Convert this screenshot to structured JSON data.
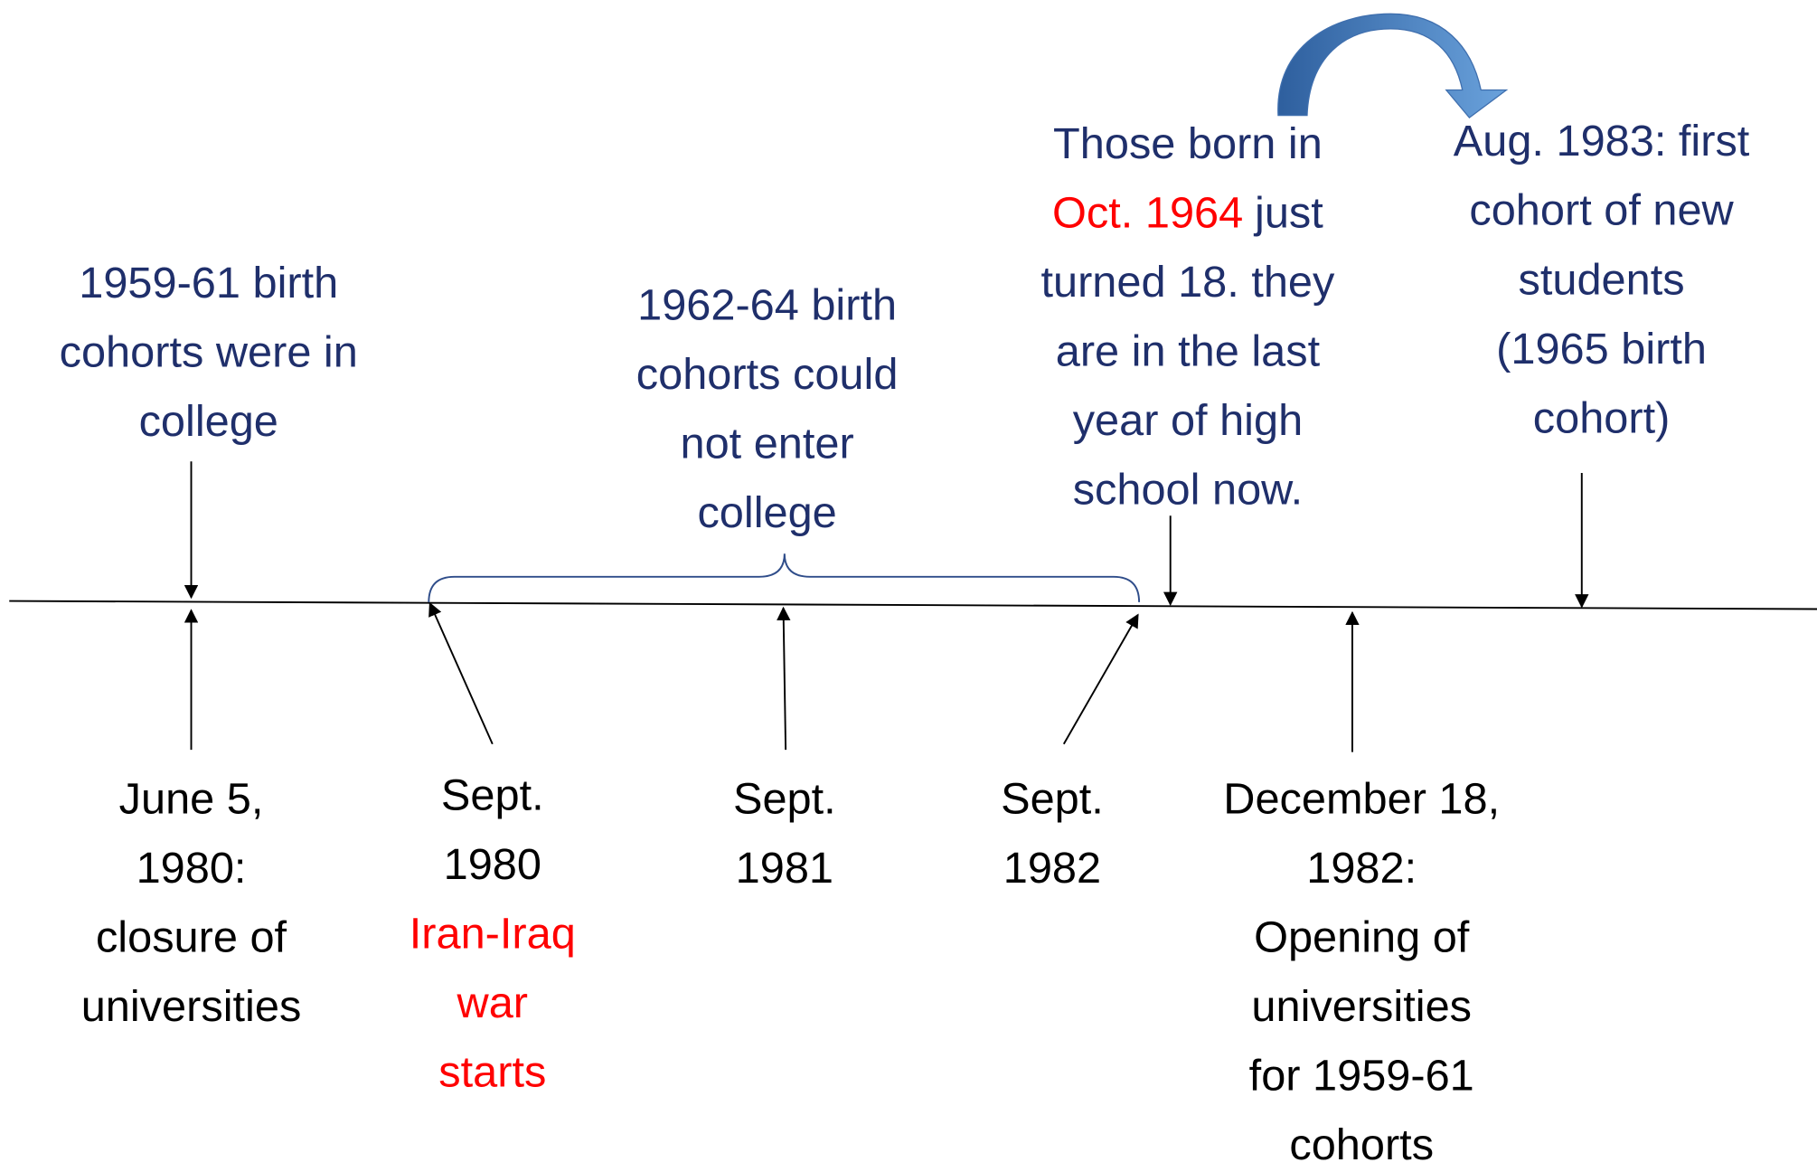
{
  "above": [
    {
      "lines": [
        "1959-61 birth",
        "cohorts were in",
        "college"
      ]
    },
    {
      "lines": [
        "1962-64 birth",
        "cohorts could",
        "not enter",
        "college"
      ]
    },
    {
      "lines": [
        "Those born in",
        [
          {
            "text": "Oct. 1964",
            "color": "#ff0000"
          },
          "just"
        ],
        "turned 18. they",
        "are in the last",
        "year of high",
        "school now."
      ]
    },
    {
      "lines": [
        "Aug. 1983: first",
        "cohort of new",
        "students",
        "(1965 birth",
        "cohort)"
      ]
    }
  ],
  "below": [
    {
      "lines": [
        "June 5,",
        "1980:",
        "closure of",
        "universities"
      ]
    },
    {
      "lines": [
        "Sept.",
        "1980",
        {
          "text": "Iran-Iraq",
          "color": "#ff0000"
        },
        {
          "text": "war",
          "color": "#ff0000"
        },
        {
          "text": "starts",
          "color": "#ff0000"
        }
      ]
    },
    {
      "lines": [
        "Sept.",
        "1981"
      ]
    },
    {
      "lines": [
        "Sept.",
        "1982"
      ]
    },
    {
      "lines": [
        "December 18,",
        "1982:",
        "Opening of",
        "universities",
        "for 1959-61",
        "cohorts"
      ]
    }
  ]
}
